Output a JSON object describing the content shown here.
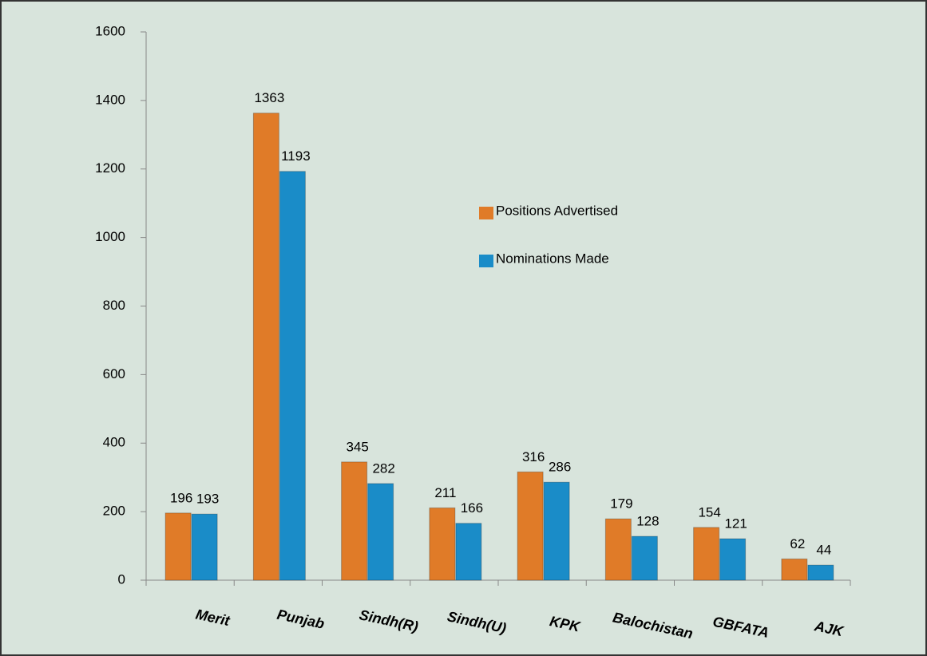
{
  "chart_data": {
    "type": "bar",
    "categories": [
      "Merit",
      "Punjab",
      "Sindh(R)",
      "Sindh(U)",
      "KPK",
      "Balochistan",
      "GBFATA",
      "AJK"
    ],
    "series": [
      {
        "name": "Positions Advertised",
        "color": "#e07b28",
        "values": [
          196,
          1363,
          345,
          211,
          316,
          179,
          154,
          62
        ]
      },
      {
        "name": "Nominations Made",
        "color": "#1a8cc8",
        "values": [
          193,
          1193,
          282,
          166,
          286,
          128,
          121,
          44
        ]
      }
    ],
    "ylim": [
      0,
      1600
    ],
    "yticks": [
      0,
      200,
      400,
      600,
      800,
      1000,
      1200,
      1400,
      1600
    ],
    "legend": "right",
    "grid": false
  }
}
